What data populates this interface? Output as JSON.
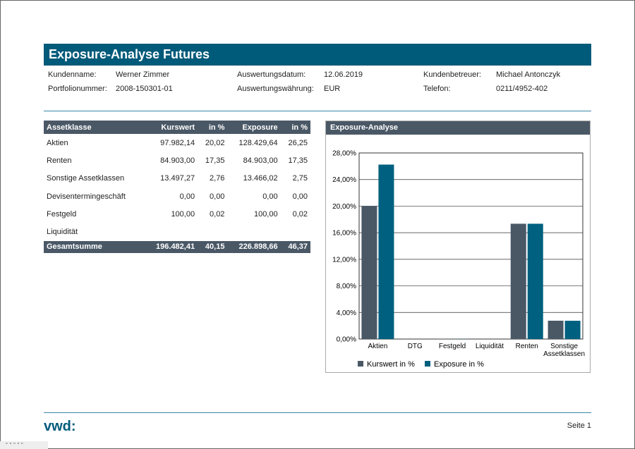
{
  "title": "Exposure-Analyse Futures",
  "info": [
    {
      "label": "Kundenname:",
      "value": "Werner Zimmer"
    },
    {
      "label": "Portfolionummer:",
      "value": "2008-150301-01"
    },
    {
      "label": "Auswertungsdatum:",
      "value": "12.06.2019"
    },
    {
      "label": "Auswertungswährung:",
      "value": "EUR"
    },
    {
      "label": "Kundenbetreuer:",
      "value": "Michael Antonczyk"
    },
    {
      "label": "Telefon:",
      "value": "0211/4952-402"
    }
  ],
  "table": {
    "headers": [
      "Assetklasse",
      "Kurswert",
      "in %",
      "Exposure",
      "in %"
    ],
    "rows": [
      [
        "Aktien",
        "97.982,14",
        "20,02",
        "128.429,64",
        "26,25"
      ],
      [
        "Renten",
        "84.903,00",
        "17,35",
        "84.903,00",
        "17,35"
      ],
      [
        "Sonstige Assetklassen",
        "13.497,27",
        "2,76",
        "13.466,02",
        "2,75"
      ],
      [
        "Devisentermingeschäft",
        "0,00",
        "0,00",
        "0,00",
        "0,00"
      ],
      [
        "Festgeld",
        "100,00",
        "0,02",
        "100,00",
        "0,02"
      ],
      [
        "Liquidität",
        "",
        "",
        "",
        ""
      ]
    ],
    "total": [
      "Gesamtsumme",
      "196.482,41",
      "40,15",
      "226.898,66",
      "46,37"
    ]
  },
  "chart_panel_title": "Exposure-Analyse",
  "chart_data": {
    "type": "bar",
    "categories": [
      "Aktien",
      "DTG",
      "Festgeld",
      "Liquidität",
      "Renten",
      "Sonstige Assetklassen"
    ],
    "series": [
      {
        "name": "Kurswert in %",
        "color": "#4a5866",
        "values": [
          20.02,
          0,
          0.02,
          0,
          17.35,
          2.76
        ]
      },
      {
        "name": "Exposure in %",
        "color": "#00607f",
        "values": [
          26.25,
          0,
          0.02,
          0,
          17.35,
          2.75
        ]
      }
    ],
    "ylim": [
      0,
      28
    ],
    "yticks": [
      "0,00%",
      "4,00%",
      "8,00%",
      "12,00%",
      "16,00%",
      "20,00%",
      "24,00%",
      "28,00%"
    ],
    "grid": true,
    "legend": "bottom"
  },
  "footer": {
    "logo": "vwd:",
    "page": "Seite 1"
  },
  "toolbar": "▫▫▫▫▫"
}
